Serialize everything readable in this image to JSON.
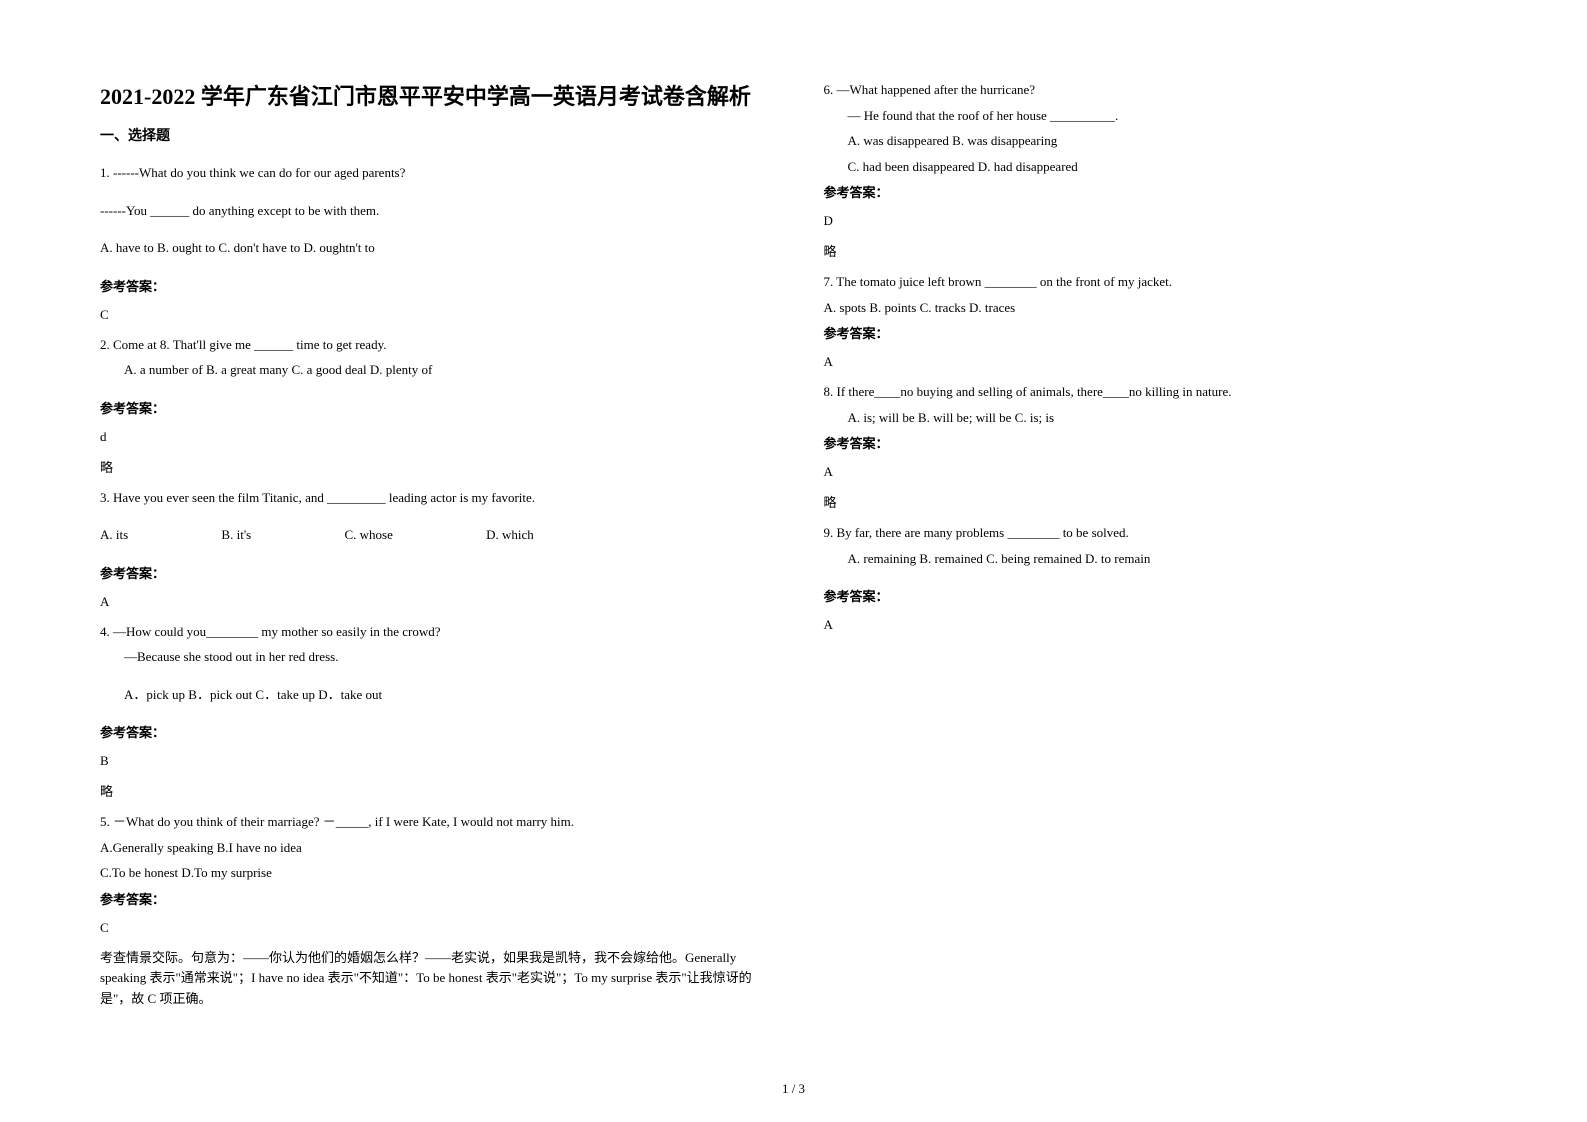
{
  "title": "2021-2022 学年广东省江门市恩平平安中学高一英语月考试卷含解析",
  "section1": "一、选择题",
  "q1": {
    "line1": "1. ------What do you think we can do for our aged parents?",
    "line2": "------You ______ do anything except to be with them.",
    "opts": "A. have to   B. ought to   C. don't have to   D. oughtn't to",
    "ansLabel": "参考答案：",
    "ans": "C"
  },
  "q2": {
    "line1": "2. Come at 8. That'll give me ______ time to get ready.",
    "opts": "A. a number of    B. a great many   C. a good deal      D. plenty of",
    "ansLabel": "参考答案：",
    "ans": "d",
    "note": "略"
  },
  "q3": {
    "line1": "3. Have you ever seen the film Titanic, and _________ leading actor is my favorite.",
    "optA": "A. its",
    "optB": "B. it's",
    "optC": "C. whose",
    "optD": "D. which",
    "ansLabel": "参考答案：",
    "ans": "A"
  },
  "q4": {
    "line1": "4. —How could you________ my mother so easily in the crowd?",
    "line2": "—Because she stood out in her red dress.",
    "opts": "A．pick up            B．pick out      C．take up           D．take out",
    "ansLabel": "参考答案：",
    "ans": "B",
    "note": "略"
  },
  "q5": {
    "line1": "5. －What do you think of their marriage? －_____, if I were Kate, I would not marry him.",
    "line2": "A.Generally speaking    B.I have no idea",
    "line3": "C.To be honest  D.To my surprise",
    "ansLabel": "参考答案：",
    "ans": "C",
    "explain": "考查情景交际。句意为：——你认为他们的婚姻怎么样？——老实说，如果我是凯特，我不会嫁给他。Generally speaking 表示\"通常来说\"；I have no idea 表示\"不知道\"：To be honest 表示\"老实说\"；To my surprise 表示\"让我惊讶的是\"，故 C 项正确。"
  },
  "q6": {
    "line1": "6. —What happened after the hurricane?",
    "line2": "— He found that the roof of her house __________.",
    "line3": "A. was disappeared       B. was disappearing",
    "line4": "C. had been disappeared    D. had disappeared",
    "ansLabel": "参考答案：",
    "ans": "D",
    "note": "略"
  },
  "q7": {
    "line1": "7. The tomato juice left brown ________ on the front of my jacket.",
    "opts": "A. spots       B. points            C. tracks                   D. traces",
    "ansLabel": "参考答案：",
    "ans": "A"
  },
  "q8": {
    "line1": "8. If there____no buying and selling of animals, there____no killing in nature.",
    "opts": "A. is; will be                       B. will be; will be      C. is; is",
    "ansLabel": "参考答案：",
    "ans": "A",
    "note": "略"
  },
  "q9": {
    "line1": "9. By far, there are many problems ________ to be solved.",
    "opts": "A. remaining       B. remained    C. being remained   D. to remain",
    "ansLabel": "参考答案：",
    "ans": "A"
  },
  "footer": "1 / 3"
}
